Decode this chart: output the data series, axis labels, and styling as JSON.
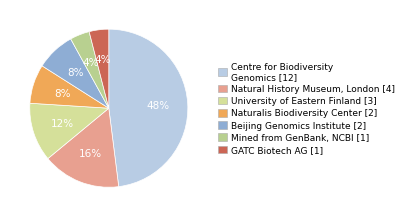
{
  "labels": [
    "Centre for Biodiversity\nGenomics [12]",
    "Natural History Museum, London [4]",
    "University of Eastern Finland [3]",
    "Naturalis Biodiversity Center [2]",
    "Beijing Genomics Institute [2]",
    "Mined from GenBank, NCBI [1]",
    "GATC Biotech AG [1]"
  ],
  "values": [
    12,
    4,
    3,
    2,
    2,
    1,
    1
  ],
  "colors": [
    "#b8cce4",
    "#e8a090",
    "#d5e09a",
    "#f0a857",
    "#8eadd4",
    "#b8d090",
    "#cc6655"
  ],
  "pct_labels": [
    "48%",
    "16%",
    "12%",
    "8%",
    "8%",
    "4%",
    "4%"
  ],
  "text_color": "#ffffff",
  "label_fontsize": 6.5,
  "pct_fontsize": 7.5,
  "legend_labels": [
    "Centre for Biodiversity\nGenomics [12]",
    "Natural History Museum, London [4]",
    "University of Eastern Finland [3]",
    "Naturalis Biodiversity Center [2]",
    "Beijing Genomics Institute [2]",
    "Mined from GenBank, NCBI [1]",
    "GATC Biotech AG [1]"
  ]
}
